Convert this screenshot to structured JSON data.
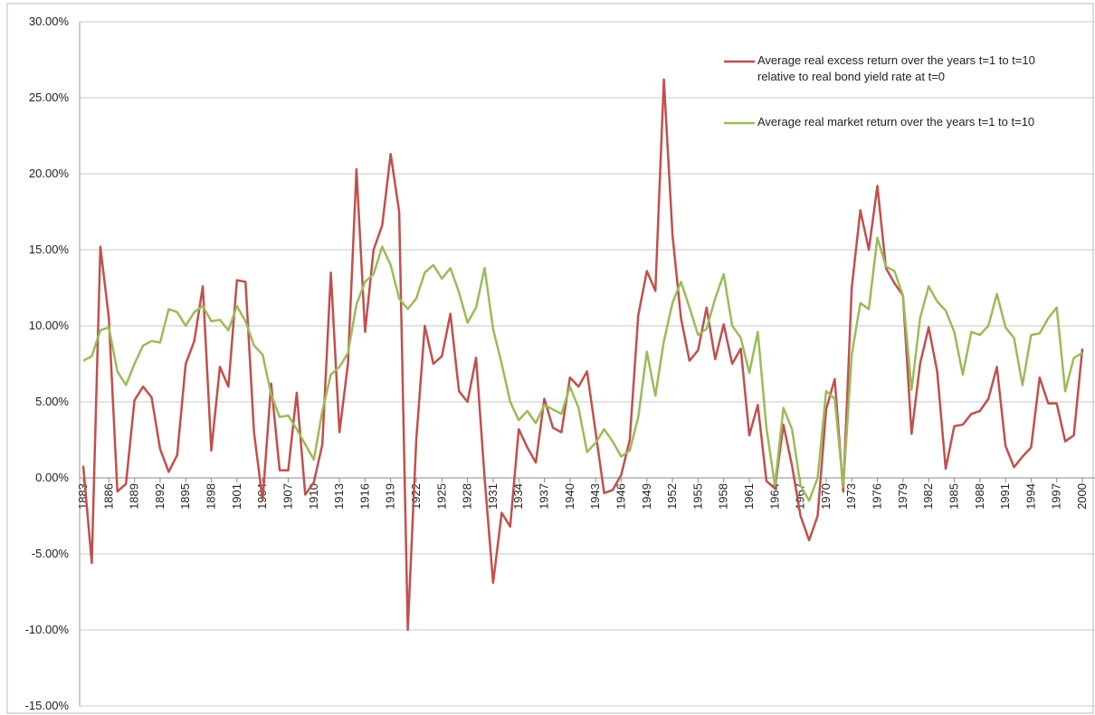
{
  "chart_data": {
    "type": "line",
    "x": [
      1883,
      1884,
      1885,
      1886,
      1887,
      1888,
      1889,
      1890,
      1891,
      1892,
      1893,
      1894,
      1895,
      1896,
      1897,
      1898,
      1899,
      1900,
      1901,
      1902,
      1903,
      1904,
      1905,
      1906,
      1907,
      1908,
      1909,
      1910,
      1911,
      1912,
      1913,
      1914,
      1915,
      1916,
      1917,
      1918,
      1919,
      1920,
      1921,
      1922,
      1923,
      1924,
      1925,
      1926,
      1927,
      1928,
      1929,
      1930,
      1931,
      1932,
      1933,
      1934,
      1935,
      1936,
      1937,
      1938,
      1939,
      1940,
      1941,
      1942,
      1943,
      1944,
      1945,
      1946,
      1947,
      1948,
      1949,
      1950,
      1951,
      1952,
      1953,
      1954,
      1955,
      1956,
      1957,
      1958,
      1959,
      1960,
      1961,
      1962,
      1963,
      1964,
      1965,
      1966,
      1967,
      1968,
      1969,
      1970,
      1971,
      1972,
      1973,
      1974,
      1975,
      1976,
      1977,
      1978,
      1979,
      1980,
      1981,
      1982,
      1983,
      1984,
      1985,
      1986,
      1987,
      1988,
      1989,
      1990,
      1991,
      1992,
      1993,
      1994,
      1995,
      1996,
      1997,
      1998,
      1999,
      2000
    ],
    "series": [
      {
        "name": "Average real excess return over the years t=1 to t=10 relative to real bond yield rate at t=0",
        "color": "#c0504d",
        "values": [
          0.8,
          -5.6,
          15.2,
          10.5,
          -0.9,
          -0.4,
          5.1,
          6.0,
          5.3,
          1.9,
          0.4,
          1.5,
          7.5,
          9.0,
          12.6,
          1.8,
          7.3,
          6.0,
          13.0,
          12.9,
          3.0,
          -1.5,
          6.2,
          0.5,
          0.5,
          5.6,
          -1.1,
          -0.3,
          2.2,
          13.5,
          3.0,
          7.5,
          20.3,
          9.6,
          15.0,
          16.6,
          21.3,
          17.5,
          -10.0,
          2.5,
          10.0,
          7.5,
          8.0,
          10.8,
          5.7,
          5.0,
          7.9,
          0.0,
          -6.9,
          -2.3,
          -3.2,
          3.2,
          2.0,
          1.0,
          5.2,
          3.3,
          3.0,
          6.6,
          6.0,
          7.0,
          3.0,
          -1.0,
          -0.8,
          0.2,
          2.5,
          10.7,
          13.6,
          12.3,
          26.2,
          16.0,
          10.5,
          7.7,
          8.4,
          11.2,
          7.8,
          10.1,
          7.5,
          8.5,
          2.8,
          4.8,
          -0.2,
          -0.7,
          3.5,
          0.8,
          -2.5,
          -4.1,
          -2.5,
          4.5,
          6.5,
          -0.9,
          12.5,
          17.6,
          15.0,
          19.2,
          13.8,
          12.8,
          12.0,
          2.9,
          7.5,
          9.9,
          7.0,
          0.6,
          3.4,
          3.5,
          4.2,
          4.4,
          5.2,
          7.3,
          2.1,
          0.7,
          1.4,
          2.0,
          6.6,
          4.9,
          4.9,
          2.4,
          2.8,
          8.5
        ]
      },
      {
        "name": "Average real market return over the years t=1 to t=10",
        "color": "#9bbb59",
        "values": [
          7.7,
          8.0,
          9.7,
          9.9,
          7.0,
          6.1,
          7.5,
          8.7,
          9.0,
          8.9,
          11.1,
          10.9,
          10.0,
          10.9,
          11.3,
          10.3,
          10.4,
          9.7,
          11.3,
          10.3,
          8.7,
          8.1,
          5.5,
          4.0,
          4.1,
          3.2,
          2.2,
          1.2,
          4.4,
          6.8,
          7.3,
          8.2,
          11.4,
          12.9,
          13.4,
          15.2,
          14.0,
          11.8,
          11.1,
          11.8,
          13.5,
          14.0,
          13.1,
          13.8,
          12.2,
          10.2,
          11.2,
          13.8,
          9.8,
          7.5,
          5.0,
          3.8,
          4.4,
          3.6,
          4.8,
          4.5,
          4.2,
          6.0,
          4.6,
          1.7,
          2.3,
          3.2,
          2.4,
          1.4,
          1.8,
          4.0,
          8.3,
          5.4,
          9.0,
          11.5,
          12.9,
          11.2,
          9.4,
          9.8,
          11.8,
          13.4,
          10.0,
          9.2,
          6.9,
          9.6,
          3.3,
          -0.5,
          4.6,
          3.2,
          -0.5,
          -1.5,
          0.0,
          5.7,
          5.2,
          -0.6,
          8.1,
          11.5,
          11.1,
          15.8,
          13.9,
          13.6,
          12.0,
          5.8,
          10.5,
          12.6,
          11.6,
          11.0,
          9.6,
          6.8,
          9.6,
          9.4,
          10.0,
          12.1,
          9.9,
          9.2,
          6.1,
          9.4,
          9.5,
          10.5,
          11.2,
          5.7,
          7.9,
          8.2
        ]
      }
    ],
    "xlim": [
      1883,
      2000
    ],
    "xticks": [
      1883,
      1886,
      1889,
      1892,
      1895,
      1898,
      1901,
      1904,
      1907,
      1910,
      1913,
      1916,
      1919,
      1922,
      1925,
      1928,
      1931,
      1934,
      1937,
      1940,
      1943,
      1946,
      1949,
      1952,
      1955,
      1958,
      1961,
      1964,
      1967,
      1970,
      1973,
      1976,
      1979,
      1982,
      1985,
      1988,
      1991,
      1994,
      1997,
      2000
    ],
    "ylim": [
      -15,
      30
    ],
    "yticks": [
      {
        "value": -15,
        "label": "-15.00%"
      },
      {
        "value": -10,
        "label": "-10.00%"
      },
      {
        "value": -5,
        "label": "-5.00%"
      },
      {
        "value": 0,
        "label": "0.00%"
      },
      {
        "value": 5,
        "label": "5.00%"
      },
      {
        "value": 10,
        "label": "10.00%"
      },
      {
        "value": 15,
        "label": "15.00%"
      },
      {
        "value": 20,
        "label": "20.00%"
      },
      {
        "value": 25,
        "label": "25.00%"
      },
      {
        "value": 30,
        "label": "30.00%"
      }
    ],
    "grid": true,
    "legend": "top-right"
  }
}
